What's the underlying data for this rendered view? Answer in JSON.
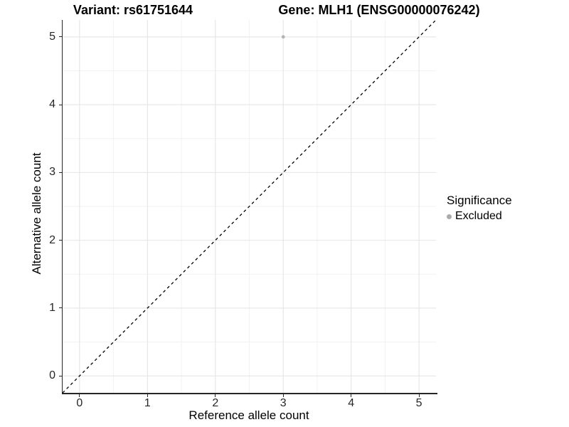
{
  "header": {
    "title_left": "Variant: rs61751644",
    "title_right": "Gene: MLH1 (ENSG00000076242)"
  },
  "chart_data": {
    "type": "scatter",
    "title": "Variant: rs61751644    Gene: MLH1 (ENSG00000076242)",
    "xlabel": "Reference allele count",
    "ylabel": "Alternative allele count",
    "xlim": [
      -0.25,
      5.25
    ],
    "ylim": [
      -0.25,
      5.25
    ],
    "x_major_ticks": [
      0,
      1,
      2,
      3,
      4,
      5
    ],
    "y_major_ticks": [
      0,
      1,
      2,
      3,
      4,
      5
    ],
    "x_minor_gridlines": [
      0.5,
      1.5,
      2.5,
      3.5,
      4.5
    ],
    "y_minor_gridlines": [
      0.5,
      1.5,
      2.5,
      3.5,
      4.5
    ],
    "grid": "major and minor, light gray on white",
    "series": [
      {
        "name": "Excluded",
        "points": [
          {
            "x": 3,
            "y": 5
          }
        ],
        "color": "#b5b5b5"
      }
    ],
    "reference_line": {
      "style": "dashed",
      "from": [
        -0.25,
        -0.25
      ],
      "to": [
        5.25,
        5.25
      ],
      "color": "#000000",
      "meaning": "identity line y = x"
    },
    "legend": {
      "title": "Significance",
      "position": "right",
      "items": [
        {
          "label": "Excluded",
          "color": "#ababab"
        }
      ]
    }
  },
  "colors": {
    "background": "#ffffff",
    "grid_major": "#e5e5e5",
    "grid_minor": "#f2f2f2",
    "axis_line": "#262626",
    "tick_text": "#262626",
    "point": "#b5b5b5",
    "legend_dot": "#ababab",
    "dashed_line": "#000000"
  }
}
